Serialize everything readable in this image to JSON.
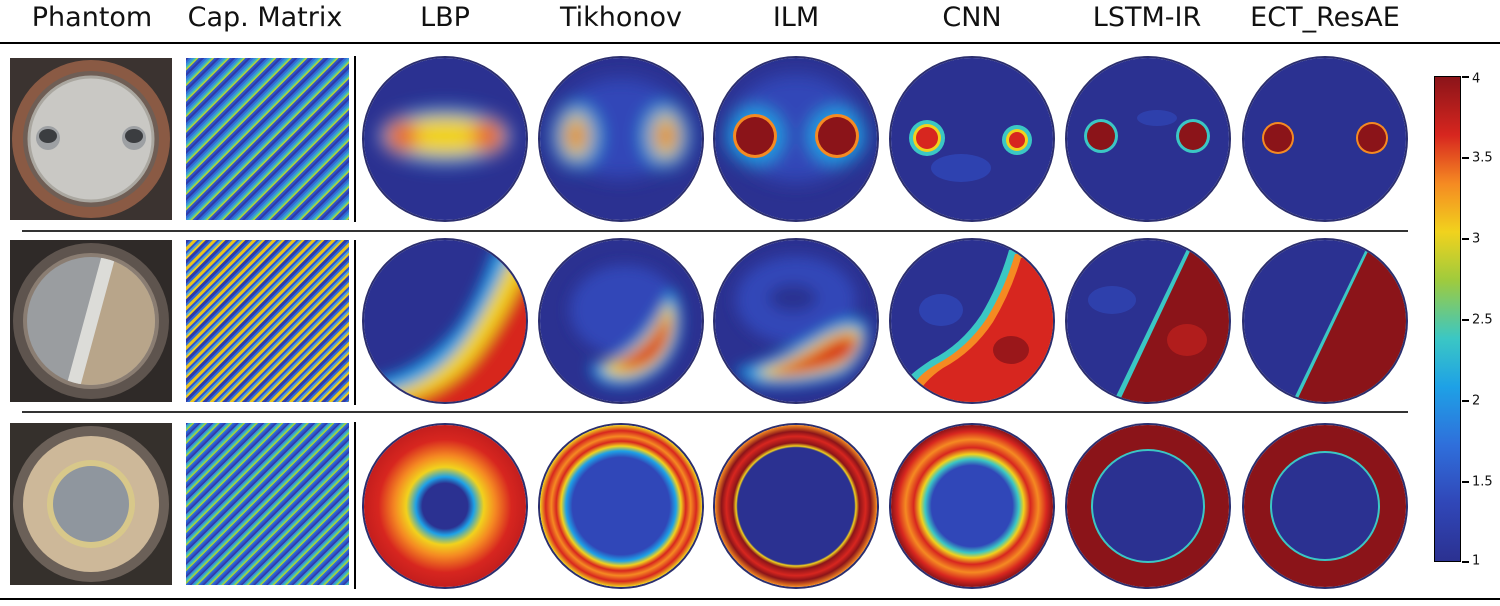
{
  "columns": {
    "phantom": "Phantom",
    "cap_matrix": "Cap. Matrix",
    "lbp": "LBP",
    "tikhonov": "Tikhonov",
    "ilm": "ILM",
    "cnn": "CNN",
    "lstm_ir": "LSTM-IR",
    "ect_resae": "ECT_ResAE"
  },
  "colorbar": {
    "ticks": [
      "4",
      "3.5",
      "3",
      "2.5",
      "2",
      "1.5",
      "1"
    ],
    "min": 1,
    "max": 4,
    "colors": [
      "#2b3191",
      "#2f6fdb",
      "#3bc7c4",
      "#f1d21d",
      "#f58a22",
      "#d7261f",
      "#8b1419"
    ]
  },
  "rows": [
    {
      "phantom": "two-rods",
      "matrix_colors": [
        "#2f3aa8",
        "#2e6bd6",
        "#3a8fd8",
        "#42c3b0",
        "#b8d235",
        "#2f52c8"
      ]
    },
    {
      "phantom": "stratified",
      "matrix_colors": [
        "#2f3aa8",
        "#2e6bd6",
        "#e9c51e",
        "#2f52c8",
        "#4d9fd9",
        "#f0cd1f"
      ]
    },
    {
      "phantom": "annular",
      "matrix_colors": [
        "#2f3aa8",
        "#3a8fd8",
        "#42c3b0",
        "#a9d139",
        "#2e6bd6",
        "#2f52c8"
      ]
    }
  ]
}
